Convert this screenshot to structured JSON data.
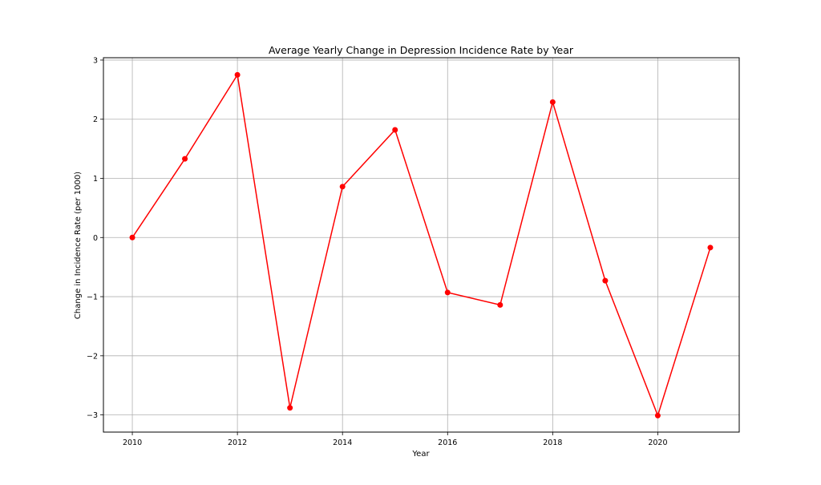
{
  "chart_data": {
    "type": "line",
    "title": "Average Yearly Change in Depression Incidence Rate by Year",
    "xlabel": "Year",
    "ylabel": "Change in Incidence Rate (per 1000)",
    "x": [
      2010,
      2011,
      2012,
      2013,
      2014,
      2015,
      2016,
      2017,
      2018,
      2019,
      2020,
      2021
    ],
    "series": [
      {
        "values": [
          0.0,
          1.33,
          2.75,
          -2.88,
          0.86,
          1.82,
          -0.93,
          -1.14,
          2.29,
          -0.73,
          -3.01,
          -0.17
        ],
        "color": "#ff0000",
        "marker": "circle"
      }
    ],
    "xlim": [
      2009.45,
      2021.55
    ],
    "ylim": [
      -3.29,
      3.04
    ],
    "xticks": [
      2010,
      2012,
      2014,
      2016,
      2018,
      2020
    ],
    "yticks": [
      3,
      2,
      1,
      0,
      -1,
      -2,
      -3
    ],
    "ytick_labels": [
      "3",
      "2",
      "1",
      "0",
      "−1",
      "−2",
      "−3"
    ],
    "grid": true,
    "legend": "none"
  }
}
